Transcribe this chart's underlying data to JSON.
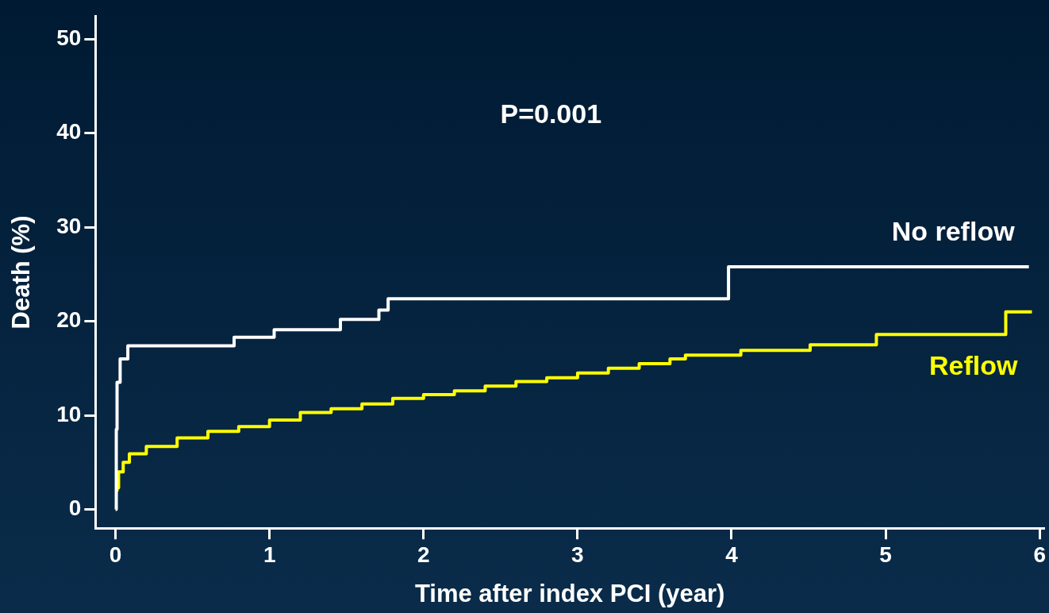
{
  "chart_data": {
    "type": "step",
    "xlabel": "Time after index PCI (year)",
    "ylabel": "Death (%)",
    "xlim": [
      -0.13,
      6.03
    ],
    "xticks": [
      0,
      1,
      2,
      3,
      4,
      5,
      6
    ],
    "ylim": [
      -2,
      52.4
    ],
    "yticks": [
      0,
      10,
      20,
      30,
      40,
      50
    ],
    "grid": false,
    "legend": false,
    "marker": "none",
    "line_style": "solid",
    "annotations": [
      "P=0.001"
    ],
    "series": [
      {
        "name": "No reflow",
        "color": "#ffffff",
        "x": [
          0,
          0.005,
          0.01,
          0.03,
          0.08,
          0.77,
          1.03,
          1.46,
          1.71,
          1.77,
          3.98,
          5.93
        ],
        "values": [
          0,
          8.5,
          13.5,
          16,
          17.4,
          18.3,
          19.1,
          20.2,
          21.2,
          22.4,
          25.8,
          25.8
        ]
      },
      {
        "name": "Reflow",
        "color": "#ffff00",
        "x": [
          0,
          0.01,
          0.02,
          0.05,
          0.09,
          0.2,
          0.4,
          0.6,
          0.8,
          1.0,
          1.2,
          1.4,
          1.6,
          1.8,
          2.0,
          2.2,
          2.4,
          2.6,
          2.8,
          3.0,
          3.2,
          3.4,
          3.6,
          3.7,
          4.06,
          4.51,
          4.94,
          5.78,
          5.95
        ],
        "values": [
          2,
          2.3,
          4.0,
          5.0,
          5.9,
          6.7,
          7.6,
          8.3,
          8.8,
          9.5,
          10.3,
          10.7,
          11.2,
          11.8,
          12.2,
          12.6,
          13.1,
          13.6,
          14.0,
          14.5,
          15.0,
          15.5,
          16.0,
          16.4,
          16.9,
          17.5,
          18.6,
          21.0,
          21.0
        ]
      }
    ]
  }
}
